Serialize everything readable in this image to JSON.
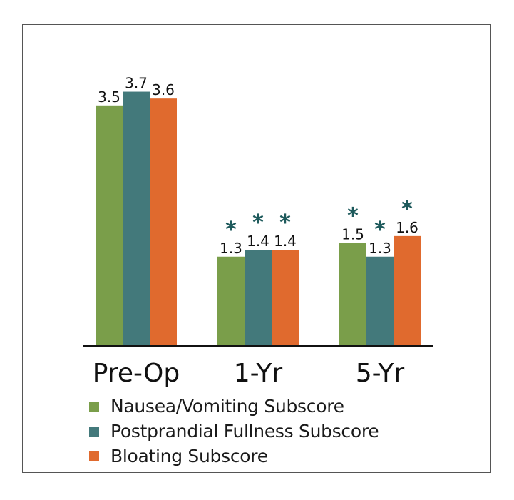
{
  "chart_data": {
    "type": "bar",
    "categories": [
      "Pre-Op",
      "1-Yr",
      "5-Yr"
    ],
    "series": [
      {
        "name": "Nausea/Vomiting Subscore",
        "color": "#7a9e4a",
        "values": [
          3.5,
          1.3,
          1.5
        ],
        "significant": [
          false,
          true,
          true
        ]
      },
      {
        "name": "Postprandial Fullness Subscore",
        "color": "#43797b",
        "values": [
          3.7,
          1.4,
          1.3
        ],
        "significant": [
          false,
          true,
          true
        ]
      },
      {
        "name": "Bloating Subscore",
        "color": "#e06a2e",
        "values": [
          3.6,
          1.4,
          1.6
        ],
        "significant": [
          false,
          true,
          true
        ]
      }
    ],
    "significance_marker": "*",
    "significance_color": "#1e5a5c",
    "ylim": [
      0,
      4.1
    ],
    "grid": false,
    "legend_position": "bottom-left"
  }
}
